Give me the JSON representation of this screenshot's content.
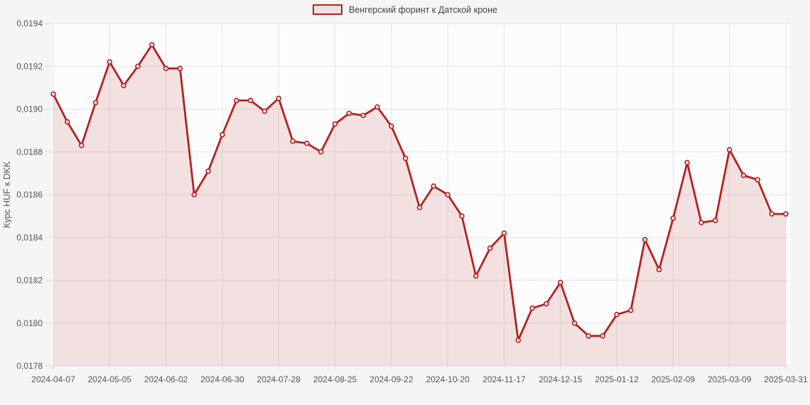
{
  "chart_data": {
    "type": "area",
    "title": "",
    "ylabel": "Курс HUF к DKK",
    "legend_position": "top-center",
    "grid": true,
    "ylim": [
      0.0178,
      0.0194
    ],
    "y_ticks": [
      {
        "value": 0.0194,
        "label": "0,0194"
      },
      {
        "value": 0.0192,
        "label": "0,0192"
      },
      {
        "value": 0.019,
        "label": "0,0190"
      },
      {
        "value": 0.0188,
        "label": "0,0188"
      },
      {
        "value": 0.0186,
        "label": "0,0186"
      },
      {
        "value": 0.0184,
        "label": "0,0184"
      },
      {
        "value": 0.0182,
        "label": "0,0182"
      },
      {
        "value": 0.018,
        "label": "0,0180"
      },
      {
        "value": 0.0178,
        "label": "0,0178"
      }
    ],
    "x_tick_labels": [
      "2024-04-07",
      "2024-05-05",
      "2024-06-02",
      "2024-06-30",
      "2024-07-28",
      "2024-08-25",
      "2024-09-22",
      "2024-10-20",
      "2024-11-17",
      "2024-12-15",
      "2025-01-12",
      "2025-02-09",
      "2025-03-09",
      "2025-03-31"
    ],
    "x_tick_indices": [
      0,
      4,
      8,
      12,
      16,
      20,
      24,
      28,
      32,
      36,
      40,
      44,
      48,
      52
    ],
    "series": [
      {
        "name": "Венгерский форинт к Датской кроне",
        "x": [
          "2024-04-07",
          "2024-04-14",
          "2024-04-21",
          "2024-04-28",
          "2024-05-05",
          "2024-05-12",
          "2024-05-19",
          "2024-05-26",
          "2024-06-02",
          "2024-06-09",
          "2024-06-16",
          "2024-06-23",
          "2024-06-30",
          "2024-07-07",
          "2024-07-14",
          "2024-07-21",
          "2024-07-28",
          "2024-08-04",
          "2024-08-11",
          "2024-08-18",
          "2024-08-25",
          "2024-09-01",
          "2024-09-08",
          "2024-09-15",
          "2024-09-22",
          "2024-09-29",
          "2024-10-06",
          "2024-10-13",
          "2024-10-20",
          "2024-10-27",
          "2024-11-03",
          "2024-11-10",
          "2024-11-17",
          "2024-11-24",
          "2024-12-01",
          "2024-12-08",
          "2024-12-15",
          "2024-12-22",
          "2024-12-29",
          "2025-01-05",
          "2025-01-12",
          "2025-01-19",
          "2025-01-26",
          "2025-02-02",
          "2025-02-09",
          "2025-02-16",
          "2025-02-23",
          "2025-03-02",
          "2025-03-09",
          "2025-03-16",
          "2025-03-23",
          "2025-03-30",
          "2025-03-31"
        ],
        "values": [
          0.01907,
          0.01894,
          0.01883,
          0.01903,
          0.01922,
          0.01911,
          0.0192,
          0.0193,
          0.01919,
          0.01919,
          0.0186,
          0.01871,
          0.01888,
          0.01904,
          0.01904,
          0.01899,
          0.01905,
          0.01885,
          0.01884,
          0.0188,
          0.01893,
          0.01898,
          0.01897,
          0.01901,
          0.01892,
          0.01877,
          0.01854,
          0.01864,
          0.0186,
          0.0185,
          0.01822,
          0.01835,
          0.01842,
          0.01792,
          0.01807,
          0.01809,
          0.01819,
          0.018,
          0.01794,
          0.01794,
          0.01804,
          0.01806,
          0.01839,
          0.01825,
          0.01849,
          0.01875,
          0.01847,
          0.01848,
          0.01881,
          0.01869,
          0.01867,
          0.01851,
          0.01851
        ]
      }
    ],
    "colors": {
      "line": "#b22222",
      "fill": "rgba(178,34,34,0.12)",
      "marker_fill": "#f3e3e3",
      "grid": "#e3e3e3",
      "tick": "#d9d9d9",
      "plot_bg": "#fcfcfc",
      "page_bg": "#f5f5f6",
      "axis_text": "#555555",
      "legend_text": "#424242",
      "swatch_fill": "#f2dede"
    }
  }
}
